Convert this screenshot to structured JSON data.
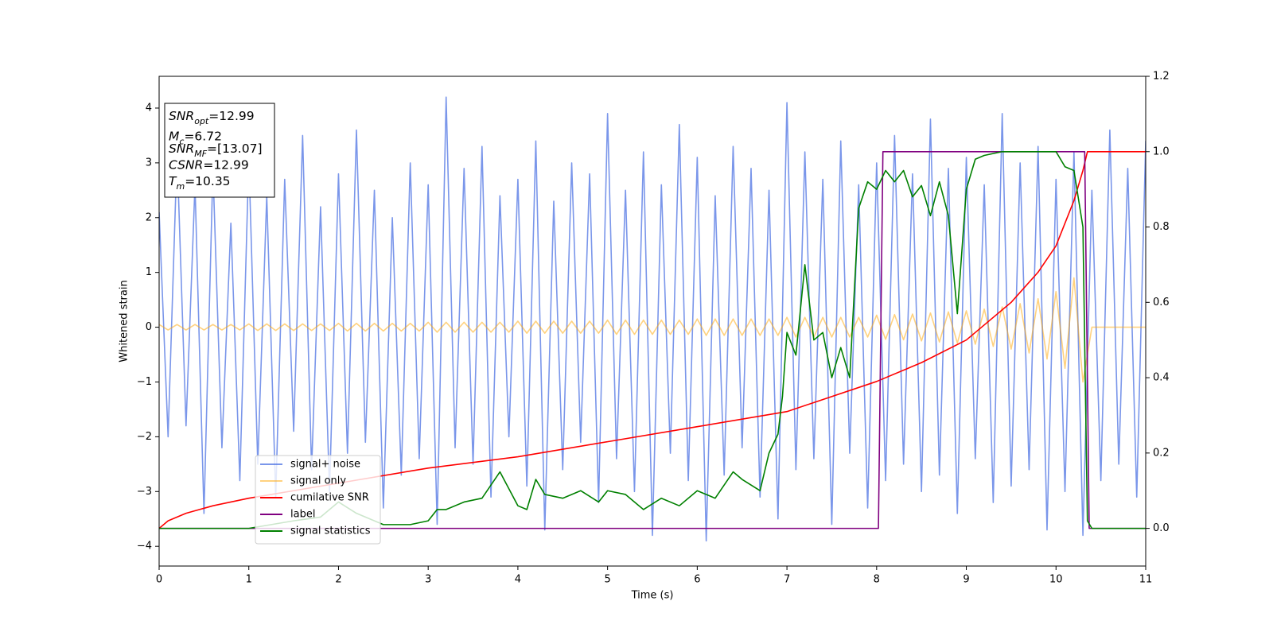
{
  "chart_data": {
    "type": "line",
    "xlabel": "Time (s)",
    "ylabel": "Whitened strain",
    "xlim": [
      0,
      11
    ],
    "xticks": [
      0,
      1,
      2,
      3,
      4,
      5,
      6,
      7,
      8,
      9,
      10,
      11
    ],
    "ylim": [
      -4.36,
      4.58
    ],
    "yticks": [
      {
        "value": -4,
        "label": "−4"
      },
      {
        "value": -3,
        "label": "−3"
      },
      {
        "value": -2,
        "label": "−2"
      },
      {
        "value": -1,
        "label": "−1"
      },
      0,
      1,
      2,
      3,
      4
    ],
    "y2lim": [
      -0.1,
      1.2
    ],
    "y2ticks": [
      {
        "value": 0,
        "label": "0.0"
      },
      0.2,
      0.4,
      0.6,
      0.8,
      {
        "value": 1,
        "label": "1.0"
      },
      1.2
    ],
    "legend": "lower left",
    "x": [
      0,
      0.1,
      0.2,
      0.3,
      0.4,
      0.5,
      0.6,
      0.7,
      0.8,
      0.9,
      1,
      1.1,
      1.2,
      1.3,
      1.4,
      1.5,
      1.6,
      1.7,
      1.8,
      1.9,
      2,
      2.1,
      2.2,
      2.3,
      2.4,
      2.5,
      2.6,
      2.7,
      2.8,
      2.9,
      3,
      3.1,
      3.2,
      3.3,
      3.4,
      3.5,
      3.6,
      3.7,
      3.8,
      3.9,
      4,
      4.1,
      4.2,
      4.3,
      4.4,
      4.5,
      4.6,
      4.7,
      4.8,
      4.9,
      5,
      5.1,
      5.2,
      5.3,
      5.4,
      5.5,
      5.6,
      5.7,
      5.8,
      5.9,
      6,
      6.1,
      6.2,
      6.3,
      6.4,
      6.5,
      6.6,
      6.7,
      6.8,
      6.9,
      7,
      7.1,
      7.2,
      7.3,
      7.4,
      7.5,
      7.6,
      7.7,
      7.8,
      7.9,
      8,
      8.1,
      8.2,
      8.3,
      8.4,
      8.5,
      8.6,
      8.7,
      8.8,
      8.9,
      9,
      9.1,
      9.2,
      9.3,
      9.4,
      9.5,
      9.6,
      9.7,
      9.8,
      9.9,
      10,
      10.1,
      10.2,
      10.3,
      10.4,
      10.5,
      10.6,
      10.7,
      10.8,
      10.9,
      11
    ],
    "series": [
      {
        "name": "signal+ noise",
        "color": "#4169e1",
        "alpha": 0.7,
        "values": [
          2.1,
          -2.0,
          3.2,
          -1.8,
          2.6,
          -3.4,
          2.9,
          -2.2,
          1.9,
          -2.8,
          3.1,
          -2.5,
          2.4,
          -3.1,
          2.7,
          -1.9,
          3.5,
          -2.6,
          2.2,
          -3.0,
          2.8,
          -2.3,
          3.6,
          -2.1,
          2.5,
          -3.3,
          2.0,
          -2.7,
          3.0,
          -2.4,
          2.6,
          -3.6,
          4.2,
          -2.2,
          2.9,
          -2.5,
          3.3,
          -3.1,
          2.4,
          -2.0,
          2.7,
          -2.9,
          3.4,
          -3.7,
          2.3,
          -2.6,
          3.0,
          -2.1,
          2.8,
          -3.2,
          3.9,
          -2.4,
          2.5,
          -3.0,
          3.2,
          -3.8,
          2.6,
          -2.3,
          3.7,
          -2.8,
          3.1,
          -3.9,
          2.4,
          -2.7,
          3.3,
          -2.2,
          2.9,
          -3.1,
          2.5,
          -3.5,
          4.1,
          -2.6,
          3.2,
          -2.4,
          2.7,
          -3.6,
          3.4,
          -2.3,
          2.6,
          -3.3,
          3.0,
          -2.8,
          3.5,
          -2.5,
          2.8,
          -3.0,
          3.8,
          -2.7,
          2.9,
          -3.4,
          3.1,
          -2.4,
          2.6,
          -3.2,
          3.9,
          -2.9,
          3.0,
          -2.6,
          3.3,
          -3.7,
          2.7,
          -3.0,
          3.2,
          -3.8,
          2.5,
          -2.8,
          3.6,
          -2.5,
          2.9,
          -3.1,
          3.4
        ]
      },
      {
        "name": "signal only",
        "color": "#ffa500",
        "alpha": 0.5,
        "values": [
          0.05,
          -0.05,
          0.05,
          -0.05,
          0.05,
          -0.05,
          0.05,
          -0.05,
          0.05,
          -0.05,
          0.06,
          -0.06,
          0.06,
          -0.06,
          0.06,
          -0.06,
          0.06,
          -0.06,
          0.06,
          -0.06,
          0.07,
          -0.07,
          0.07,
          -0.07,
          0.07,
          -0.07,
          0.07,
          -0.07,
          0.07,
          -0.07,
          0.09,
          -0.09,
          0.09,
          -0.09,
          0.09,
          -0.09,
          0.09,
          -0.09,
          0.09,
          -0.09,
          0.11,
          -0.11,
          0.11,
          -0.11,
          0.11,
          -0.11,
          0.11,
          -0.11,
          0.11,
          -0.11,
          0.13,
          -0.13,
          0.13,
          -0.13,
          0.13,
          -0.13,
          0.13,
          -0.13,
          0.13,
          -0.13,
          0.15,
          -0.15,
          0.15,
          -0.15,
          0.15,
          -0.15,
          0.15,
          -0.15,
          0.15,
          -0.15,
          0.18,
          -0.18,
          0.18,
          -0.18,
          0.18,
          -0.18,
          0.18,
          -0.18,
          0.18,
          -0.18,
          0.22,
          -0.22,
          0.23,
          -0.23,
          0.24,
          -0.25,
          0.26,
          -0.27,
          0.28,
          -0.29,
          0.3,
          -0.31,
          0.33,
          -0.35,
          0.37,
          -0.4,
          0.43,
          -0.47,
          0.52,
          -0.58,
          0.65,
          -0.75,
          0.9,
          -1.0,
          0,
          0,
          0,
          0,
          0,
          0,
          0
        ]
      },
      {
        "name": "cumilative SNR",
        "color": "#ff0000",
        "axis": "y2",
        "x": [
          0,
          0.1,
          0.3,
          0.6,
          1,
          2,
          3,
          4,
          5,
          6,
          7,
          8,
          8.5,
          9,
          9.5,
          9.8,
          10,
          10.2,
          10.3,
          10.35,
          10.4,
          11
        ],
        "values": [
          0,
          0.02,
          0.04,
          0.06,
          0.08,
          0.12,
          0.16,
          0.19,
          0.23,
          0.27,
          0.31,
          0.39,
          0.44,
          0.5,
          0.6,
          0.68,
          0.75,
          0.87,
          0.95,
          1.0,
          1.0,
          1.0
        ]
      },
      {
        "name": "label",
        "color": "#800080",
        "axis": "y2",
        "x": [
          0,
          8.02,
          8.07,
          10.32,
          10.37,
          11
        ],
        "values": [
          0,
          0,
          1,
          1,
          0,
          0
        ]
      },
      {
        "name": "signal statistics",
        "color": "#008000",
        "axis": "y2",
        "x": [
          0,
          0.5,
          1,
          1.5,
          1.8,
          2,
          2.2,
          2.5,
          2.8,
          3,
          3.1,
          3.2,
          3.4,
          3.6,
          3.8,
          4,
          4.1,
          4.2,
          4.3,
          4.5,
          4.7,
          4.9,
          5,
          5.2,
          5.4,
          5.6,
          5.8,
          6,
          6.2,
          6.4,
          6.5,
          6.7,
          6.8,
          6.9,
          6.95,
          7.0,
          7.1,
          7.2,
          7.3,
          7.4,
          7.5,
          7.6,
          7.7,
          7.8,
          7.9,
          8.0,
          8.1,
          8.2,
          8.3,
          8.4,
          8.5,
          8.6,
          8.7,
          8.8,
          8.9,
          9.0,
          9.1,
          9.2,
          9.4,
          9.6,
          9.8,
          10.0,
          10.1,
          10.2,
          10.3,
          10.35,
          10.4,
          11
        ],
        "values": [
          0,
          0,
          0,
          0.02,
          0.03,
          0.07,
          0.04,
          0.01,
          0.01,
          0.02,
          0.05,
          0.05,
          0.07,
          0.08,
          0.15,
          0.06,
          0.05,
          0.13,
          0.09,
          0.08,
          0.1,
          0.07,
          0.1,
          0.09,
          0.05,
          0.08,
          0.06,
          0.1,
          0.08,
          0.15,
          0.13,
          0.1,
          0.2,
          0.25,
          0.35,
          0.52,
          0.46,
          0.7,
          0.5,
          0.52,
          0.4,
          0.48,
          0.4,
          0.85,
          0.92,
          0.9,
          0.95,
          0.92,
          0.95,
          0.88,
          0.91,
          0.83,
          0.92,
          0.83,
          0.57,
          0.9,
          0.98,
          0.99,
          1.0,
          1.0,
          1.0,
          1.0,
          0.96,
          0.95,
          0.8,
          0.02,
          0.0,
          0.0
        ]
      }
    ],
    "annotation": [
      {
        "text": "SNR",
        "sub": "opt",
        "value": "=12.99"
      },
      {
        "text": "M",
        "sub": "c",
        "value": "=6.72"
      },
      {
        "text": "SNR",
        "sub": "MF",
        "value": "=[13.07]"
      },
      {
        "text": "CSNR",
        "value": "=12.99"
      },
      {
        "text": "T",
        "sub": "m",
        "value": "=10.35"
      }
    ]
  }
}
